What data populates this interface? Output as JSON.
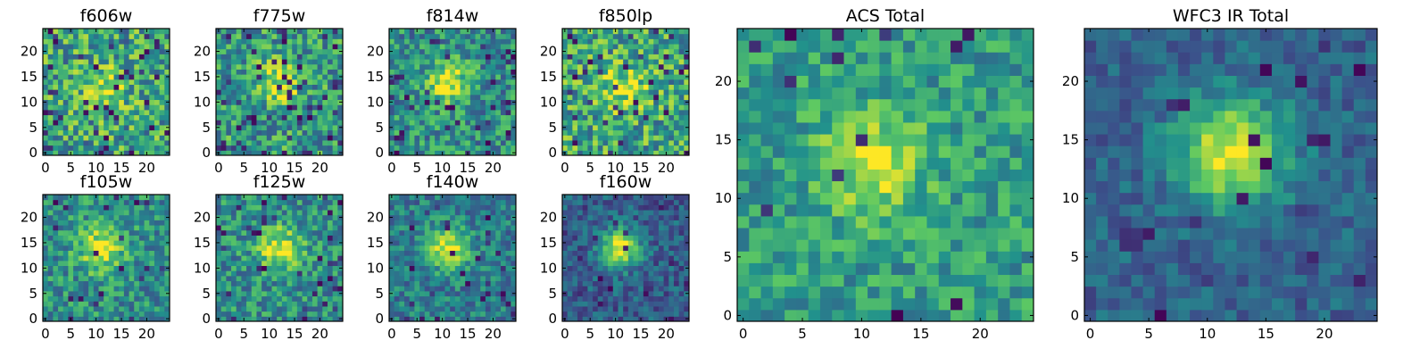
{
  "figure": {
    "colormap": "viridis",
    "colormap_stops": [
      "#440154",
      "#3b528b",
      "#21918c",
      "#5ec962",
      "#fde725"
    ],
    "frame_color": "#000000",
    "background": "#ffffff"
  },
  "chart_data": [
    {
      "type": "heatmap",
      "title": "f606w",
      "grid_size": 25,
      "seed": 11,
      "noise": 0.62,
      "blob": {
        "cx": 12,
        "cy": 13,
        "sigma": 3.0,
        "amp": 0.25
      },
      "base": 0.58,
      "dark_frac": 0.06,
      "xticks": [
        "0",
        "5",
        "10",
        "15",
        "20"
      ],
      "yticks": [
        "0",
        "5",
        "10",
        "15",
        "20"
      ],
      "xlim": [
        0,
        25
      ],
      "ylim": [
        0,
        25
      ]
    },
    {
      "type": "heatmap",
      "title": "f775w",
      "grid_size": 25,
      "seed": 23,
      "noise": 0.55,
      "blob": {
        "cx": 12,
        "cy": 14,
        "sigma": 3.0,
        "amp": 0.35
      },
      "base": 0.55,
      "dark_frac": 0.08,
      "xticks": [
        "0",
        "5",
        "10",
        "15",
        "20"
      ],
      "yticks": [
        "0",
        "5",
        "10",
        "15",
        "20"
      ],
      "xlim": [
        0,
        25
      ],
      "ylim": [
        0,
        25
      ]
    },
    {
      "type": "heatmap",
      "title": "f814w",
      "grid_size": 25,
      "seed": 37,
      "noise": 0.5,
      "blob": {
        "cx": 11,
        "cy": 14,
        "sigma": 2.8,
        "amp": 0.45
      },
      "base": 0.5,
      "dark_frac": 0.06,
      "xticks": [
        "0",
        "5",
        "10",
        "15",
        "20"
      ],
      "yticks": [
        "0",
        "5",
        "10",
        "15",
        "20"
      ],
      "xlim": [
        0,
        25
      ],
      "ylim": [
        0,
        25
      ]
    },
    {
      "type": "heatmap",
      "title": "f850lp",
      "grid_size": 25,
      "seed": 41,
      "noise": 0.6,
      "blob": {
        "cx": 12,
        "cy": 13,
        "sigma": 3.0,
        "amp": 0.3
      },
      "base": 0.6,
      "dark_frac": 0.08,
      "xticks": [
        "0",
        "5",
        "10",
        "15",
        "20"
      ],
      "yticks": [
        "0",
        "5",
        "10",
        "15",
        "20"
      ],
      "xlim": [
        0,
        25
      ],
      "ylim": [
        0,
        25
      ]
    },
    {
      "type": "heatmap",
      "title": "f105w",
      "grid_size": 25,
      "seed": 53,
      "noise": 0.45,
      "blob": {
        "cx": 11,
        "cy": 14,
        "sigma": 3.2,
        "amp": 0.45
      },
      "base": 0.5,
      "dark_frac": 0.04,
      "xticks": [
        "0",
        "5",
        "10",
        "15",
        "20"
      ],
      "yticks": [
        "0",
        "5",
        "10",
        "15",
        "20"
      ],
      "xlim": [
        0,
        25
      ],
      "ylim": [
        0,
        25
      ]
    },
    {
      "type": "heatmap",
      "title": "f125w",
      "grid_size": 25,
      "seed": 67,
      "noise": 0.45,
      "blob": {
        "cx": 12,
        "cy": 14,
        "sigma": 3.0,
        "amp": 0.45
      },
      "base": 0.5,
      "dark_frac": 0.05,
      "xticks": [
        "0",
        "5",
        "10",
        "15",
        "20"
      ],
      "yticks": [
        "0",
        "5",
        "10",
        "15",
        "20"
      ],
      "xlim": [
        0,
        25
      ],
      "ylim": [
        0,
        25
      ]
    },
    {
      "type": "heatmap",
      "title": "f140w",
      "grid_size": 25,
      "seed": 79,
      "noise": 0.38,
      "blob": {
        "cx": 11,
        "cy": 14,
        "sigma": 2.8,
        "amp": 0.55
      },
      "base": 0.42,
      "dark_frac": 0.05,
      "xticks": [
        "0",
        "5",
        "10",
        "15",
        "20"
      ],
      "yticks": [
        "0",
        "5",
        "10",
        "15",
        "20"
      ],
      "xlim": [
        0,
        25
      ],
      "ylim": [
        0,
        25
      ]
    },
    {
      "type": "heatmap",
      "title": "f160w",
      "grid_size": 25,
      "seed": 83,
      "noise": 0.32,
      "blob": {
        "cx": 11,
        "cy": 14,
        "sigma": 2.6,
        "amp": 0.7
      },
      "base": 0.3,
      "dark_frac": 0.04,
      "xticks": [
        "0",
        "5",
        "10",
        "15",
        "20"
      ],
      "yticks": [
        "0",
        "5",
        "10",
        "15",
        "20"
      ],
      "xlim": [
        0,
        25
      ],
      "ylim": [
        0,
        25
      ]
    },
    {
      "type": "heatmap",
      "title": "ACS Total",
      "grid_size": 25,
      "seed": 97,
      "noise": 0.38,
      "blob": {
        "cx": 11,
        "cy": 13,
        "sigma": 3.2,
        "amp": 0.35
      },
      "base": 0.55,
      "dark_frac": 0.03,
      "xticks": [
        "0",
        "5",
        "10",
        "15",
        "20"
      ],
      "yticks": [
        "0",
        "5",
        "10",
        "15",
        "20"
      ],
      "xlim": [
        0,
        25
      ],
      "ylim": [
        0,
        25
      ]
    },
    {
      "type": "heatmap",
      "title": "WFC3 IR Total",
      "grid_size": 25,
      "seed": 101,
      "noise": 0.25,
      "blob": {
        "cx": 12,
        "cy": 14,
        "sigma": 3.2,
        "amp": 0.65
      },
      "base": 0.32,
      "dark_frac": 0.04,
      "xticks": [
        "0",
        "5",
        "10",
        "15",
        "20"
      ],
      "yticks": [
        "0",
        "5",
        "10",
        "15",
        "20"
      ],
      "xlim": [
        0,
        25
      ],
      "ylim": [
        0,
        25
      ]
    }
  ]
}
